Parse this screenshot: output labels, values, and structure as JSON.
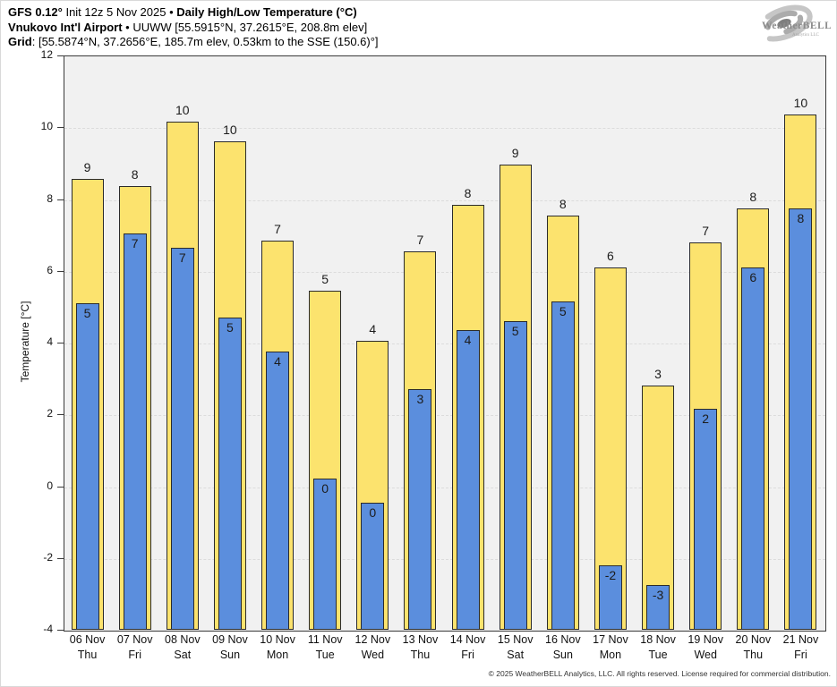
{
  "header": {
    "line1": {
      "bold1": "GFS 0.12°",
      "mid": " Init 12z 5 Nov 2025 • ",
      "bold2": "Daily High/Low Temperature (°C)"
    },
    "line2": {
      "bold": "Vnukovo Int'l Airport",
      "rest": " • UUWW [55.5915°N, 37.2615°E, 208.8m elev]"
    },
    "line3": {
      "bold": "Grid",
      "rest": ": [55.5874°N, 37.2656°E, 185.7m elev, 0.53km to the SSE (150.6)°]"
    }
  },
  "logo": {
    "brand": "WeatherBELL",
    "sub": "Analytics LLC"
  },
  "footer": "© 2025 WeatherBELL Analytics, LLC. All rights reserved. License required for commercial distribution.",
  "colors": {
    "high_fill": "#fce36e",
    "low_fill": "#5b8edd",
    "bar_border": "#2b2b2b",
    "plot_bg": "#f1f1f1",
    "grid": "#dcdcdc",
    "axis": "#3a3a3a"
  },
  "chart_data": {
    "type": "bar",
    "title": "GFS 0.12° Init 12z 5 Nov 2025 • Daily High/Low Temperature (°C)",
    "subtitle": "Vnukovo Int'l Airport • UUWW [55.5915°N, 37.2615°E, 208.8m elev]",
    "xlabel": "",
    "ylabel": "Temperature [°C]",
    "ylim": [
      -4,
      12
    ],
    "yticks": [
      12,
      10,
      8,
      6,
      4,
      2,
      0,
      -2,
      -4
    ],
    "gridlines": [
      10,
      8,
      6,
      4,
      2,
      0,
      -2
    ],
    "grid": "horizontal dashed",
    "legend": "none",
    "categories": [
      {
        "date": "06 Nov",
        "day": "Thu"
      },
      {
        "date": "07 Nov",
        "day": "Fri"
      },
      {
        "date": "08 Nov",
        "day": "Sat"
      },
      {
        "date": "09 Nov",
        "day": "Sun"
      },
      {
        "date": "10 Nov",
        "day": "Mon"
      },
      {
        "date": "11 Nov",
        "day": "Tue"
      },
      {
        "date": "12 Nov",
        "day": "Wed"
      },
      {
        "date": "13 Nov",
        "day": "Thu"
      },
      {
        "date": "14 Nov",
        "day": "Fri"
      },
      {
        "date": "15 Nov",
        "day": "Sat"
      },
      {
        "date": "16 Nov",
        "day": "Sun"
      },
      {
        "date": "17 Nov",
        "day": "Mon"
      },
      {
        "date": "18 Nov",
        "day": "Tue"
      },
      {
        "date": "19 Nov",
        "day": "Wed"
      },
      {
        "date": "20 Nov",
        "day": "Thu"
      },
      {
        "date": "21 Nov",
        "day": "Fri"
      }
    ],
    "series": [
      {
        "name": "Daily High",
        "color": "#fce36e",
        "values": [
          8.55,
          8.35,
          10.15,
          9.6,
          6.85,
          5.45,
          4.05,
          6.55,
          7.85,
          8.95,
          7.55,
          6.1,
          2.8,
          6.8,
          7.75,
          10.35
        ],
        "labels": [
          "9",
          "8",
          "10",
          "10",
          "7",
          "5",
          "4",
          "7",
          "8",
          "9",
          "8",
          "6",
          "3",
          "7",
          "8",
          "10"
        ]
      },
      {
        "name": "Daily Low",
        "color": "#5b8edd",
        "values": [
          5.1,
          7.05,
          6.65,
          4.7,
          3.75,
          0.2,
          -0.45,
          2.7,
          4.35,
          4.6,
          5.15,
          -2.2,
          -2.75,
          2.15,
          6.1,
          7.75
        ],
        "labels": [
          "5",
          "7",
          "7",
          "5",
          "4",
          "0",
          "0",
          "3",
          "4",
          "5",
          "5",
          "-2",
          "-3",
          "2",
          "6",
          "8"
        ]
      }
    ]
  }
}
